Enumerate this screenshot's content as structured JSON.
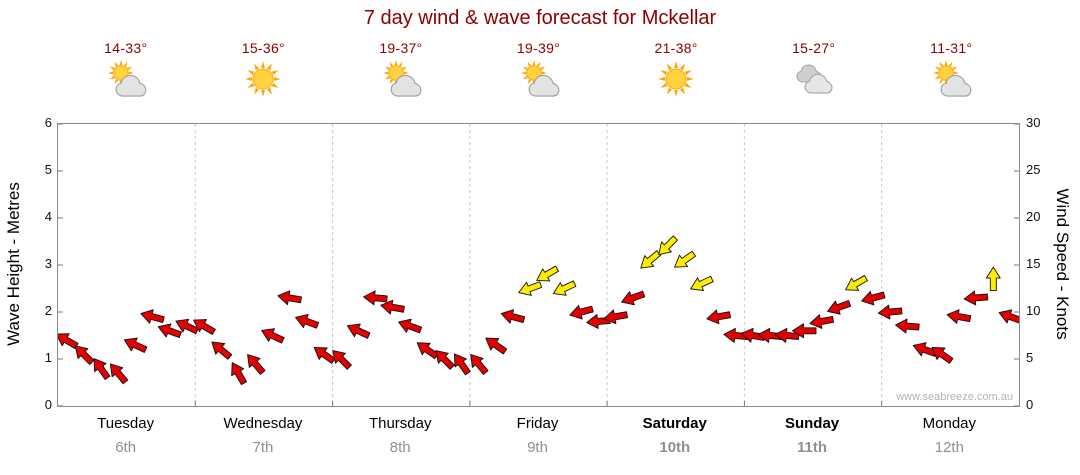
{
  "title": "7 day wind & wave forecast for Mckellar",
  "watermark": "www.seabreeze.com.au",
  "theme": {
    "title_color": "#8b0000",
    "temp_color": "#8b0000",
    "arrow_red": "#e30000",
    "arrow_yellow": "#ffec00",
    "date_gray": "#909090"
  },
  "forecast": {
    "days": [
      {
        "temp": "14-33°",
        "icon": "sun-cloud"
      },
      {
        "temp": "15-36°",
        "icon": "sunny"
      },
      {
        "temp": "19-37°",
        "icon": "sun-cloud"
      },
      {
        "temp": "19-39°",
        "icon": "sun-cloud"
      },
      {
        "temp": "21-38°",
        "icon": "sunny"
      },
      {
        "temp": "15-27°",
        "icon": "cloudy"
      },
      {
        "temp": "11-31°",
        "icon": "sun-cloud"
      }
    ]
  },
  "chart_data": {
    "type": "wind-arrow-series",
    "title": "7 day wind & wave forecast for Mckellar",
    "y_left": {
      "label": "Wave Height - Metres",
      "min": 0,
      "max": 6,
      "ticks": [
        0,
        1,
        2,
        3,
        4,
        5,
        6
      ]
    },
    "y_right": {
      "label": "Wind Speed - Knots",
      "min": 0,
      "max": 30,
      "ticks": [
        0,
        5,
        10,
        15,
        20,
        25,
        30
      ]
    },
    "x_days": [
      {
        "name": "Tuesday",
        "date": "6th",
        "weekend": false
      },
      {
        "name": "Wednesday",
        "date": "7th",
        "weekend": false
      },
      {
        "name": "Thursday",
        "date": "8th",
        "weekend": false
      },
      {
        "name": "Friday",
        "date": "9th",
        "weekend": false
      },
      {
        "name": "Saturday",
        "date": "10th",
        "weekend": true
      },
      {
        "name": "Sunday",
        "date": "11th",
        "weekend": true
      },
      {
        "name": "Monday",
        "date": "12th",
        "weekend": false
      }
    ],
    "points_per_day": 8,
    "wind_knots": [
      7,
      5.5,
      4,
      3.5,
      6.5,
      9.5,
      8,
      8.5,
      8.5,
      6,
      3.5,
      4.5,
      7.5,
      11.5,
      9,
      5.5,
      5,
      8,
      11.5,
      10.5,
      8.5,
      6,
      5,
      4.5,
      4.5,
      6.5,
      9.5,
      12.5,
      14,
      12.5,
      10,
      9,
      9.5,
      11.5,
      15.5,
      17,
      15.5,
      13,
      9.5,
      7.5,
      7.5,
      7.5,
      7.5,
      8,
      9,
      10.5,
      13,
      11.5,
      10,
      8.5,
      6,
      5.5,
      9.5,
      11.5,
      13.5,
      9.5
    ],
    "wind_dir_deg": [
      210,
      225,
      235,
      230,
      205,
      195,
      200,
      205,
      210,
      220,
      240,
      230,
      205,
      190,
      200,
      215,
      225,
      205,
      185,
      190,
      200,
      215,
      225,
      235,
      230,
      215,
      195,
      160,
      150,
      155,
      165,
      175,
      170,
      160,
      140,
      135,
      145,
      155,
      170,
      185,
      190,
      185,
      185,
      180,
      170,
      160,
      150,
      165,
      175,
      185,
      200,
      215,
      190,
      175,
      270,
      200
    ],
    "speed_color_rule": {
      "yellow_at_or_above_knots": 12,
      "red_below_knots": 12
    },
    "grid": "vertical-day-separators",
    "legend_position": "none"
  }
}
